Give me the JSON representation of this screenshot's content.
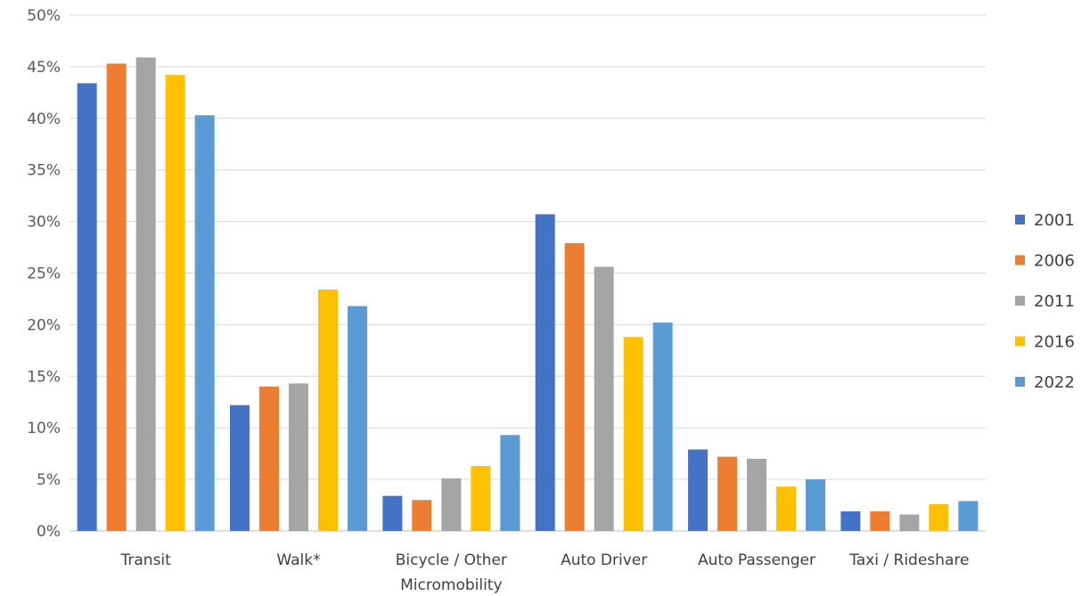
{
  "chart_data": {
    "type": "bar",
    "categories": [
      "Transit",
      "Walk*",
      "Bicycle / Other\nMicromobility",
      "Auto Driver",
      "Auto Passenger",
      "Taxi / Rideshare"
    ],
    "series": [
      {
        "name": "2001",
        "color": "#4472c4",
        "values": [
          43.4,
          12.2,
          3.4,
          30.7,
          7.9,
          1.9
        ]
      },
      {
        "name": "2006",
        "color": "#ed7d31",
        "values": [
          45.3,
          14.0,
          3.0,
          27.9,
          7.2,
          1.9
        ]
      },
      {
        "name": "2011",
        "color": "#a5a5a5",
        "values": [
          45.9,
          14.3,
          5.1,
          25.6,
          7.0,
          1.6
        ]
      },
      {
        "name": "2016",
        "color": "#ffc000",
        "values": [
          44.2,
          23.4,
          6.3,
          18.8,
          4.3,
          2.6
        ]
      },
      {
        "name": "2022",
        "color": "#5b9bd5",
        "values": [
          40.3,
          21.8,
          9.3,
          20.2,
          5.0,
          2.9
        ]
      }
    ],
    "yticks": [
      "0%",
      "5%",
      "10%",
      "15%",
      "20%",
      "25%",
      "30%",
      "35%",
      "40%",
      "45%",
      "50%"
    ],
    "ylim": [
      0,
      50
    ],
    "grid": true,
    "legend_position": "right"
  }
}
